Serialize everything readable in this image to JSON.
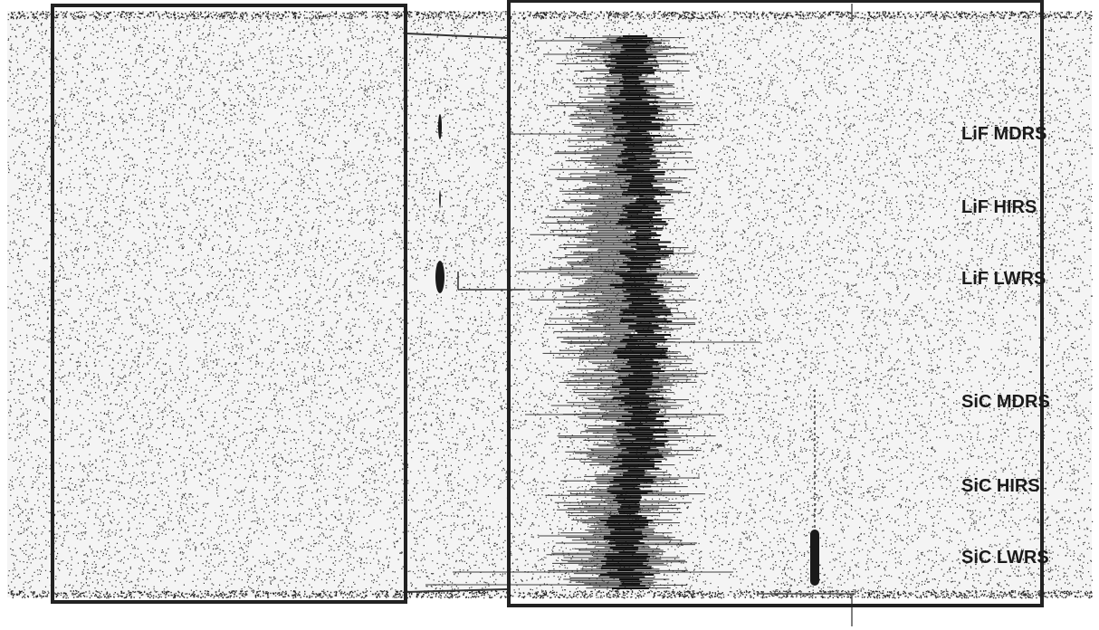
{
  "apertures": [
    {
      "label": "LiF MDRS"
    },
    {
      "label": "LiF HIRS"
    },
    {
      "label": "LiF LWRS"
    },
    {
      "label": "SiC MDRS"
    },
    {
      "label": "SiC HIRS"
    },
    {
      "label": "SiC LWRS"
    }
  ],
  "colors": {
    "background": "#f4f4f4",
    "noise": "#333333",
    "frame": "#222222",
    "label": "#1a1a1a"
  }
}
